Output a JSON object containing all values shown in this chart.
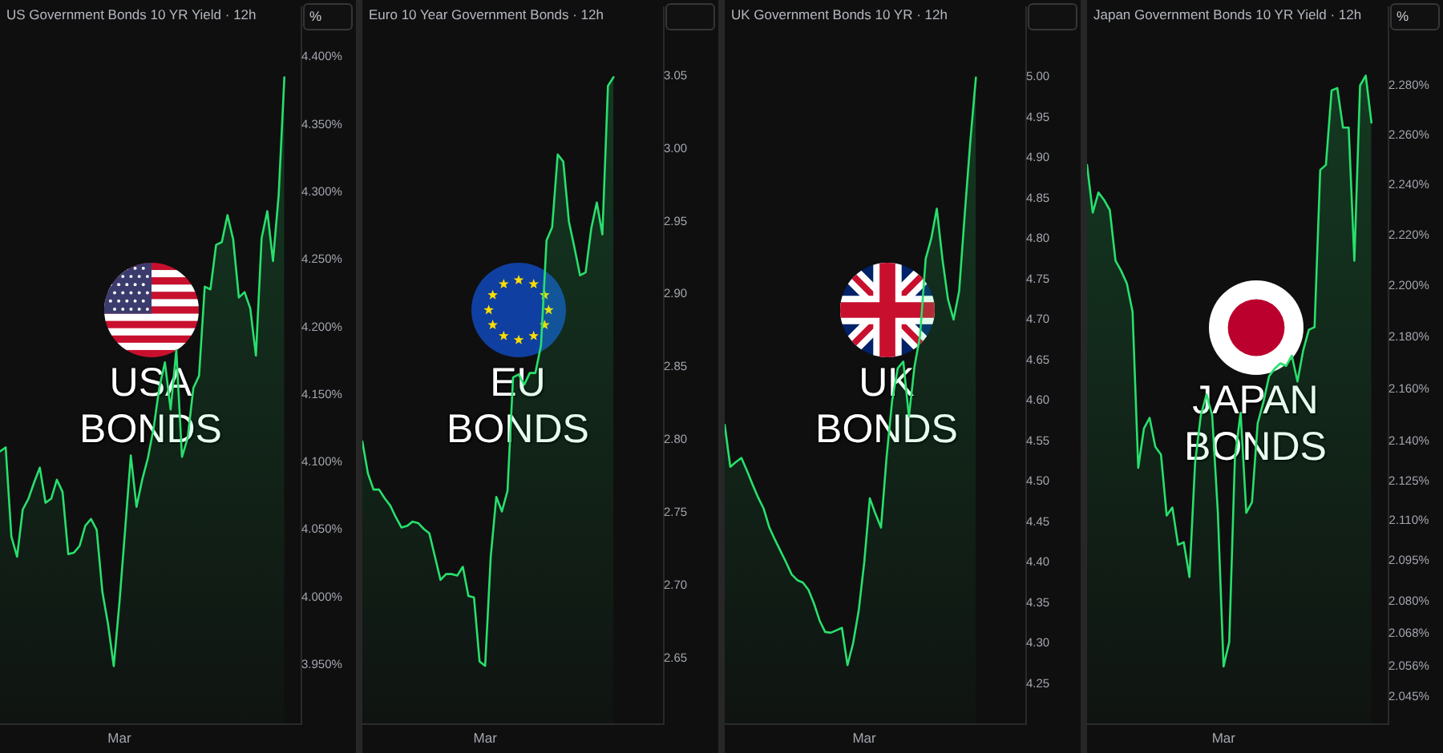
{
  "chart_data": [
    {
      "type": "area",
      "title": "US Government Bonds 10 YR Yield · 12h",
      "ylabel": "%",
      "categories": [
        null,
        null,
        null,
        null,
        null,
        null,
        null,
        null,
        null,
        null,
        null,
        null,
        null,
        null,
        null,
        null,
        null,
        null,
        null,
        null,
        null,
        "Mar",
        null,
        null,
        null,
        null,
        null,
        null,
        null,
        null,
        null,
        null,
        null,
        null,
        null,
        null,
        null,
        null,
        null,
        null,
        null,
        null,
        null,
        null,
        null,
        null,
        null,
        null,
        null,
        null,
        null,
        null,
        null,
        null
      ],
      "values": [
        4.108,
        4.111,
        4.045,
        4.03,
        4.065,
        4.073,
        4.085,
        4.096,
        4.07,
        4.073,
        4.087,
        4.078,
        4.032,
        4.033,
        4.038,
        4.053,
        4.058,
        4.05,
        4.004,
        3.98,
        3.949,
        3.996,
        4.05,
        4.105,
        4.067,
        4.087,
        4.103,
        4.125,
        4.155,
        4.174,
        4.139,
        4.183,
        4.104,
        4.118,
        4.155,
        4.164,
        4.23,
        4.228,
        4.261,
        4.263,
        4.283,
        4.265,
        4.222,
        4.226,
        4.214,
        4.179,
        4.266,
        4.286,
        4.249,
        4.298,
        4.385,
        null,
        null,
        null
      ],
      "color": "#28e06c",
      "ylim": [
        3.906,
        4.437
      ],
      "yticks": [
        {
          "value": 4.4,
          "label": "4.400%"
        },
        {
          "value": 4.35,
          "label": "4.350%"
        },
        {
          "value": 4.3,
          "label": "4.300%"
        },
        {
          "value": 4.25,
          "label": "4.250%"
        },
        {
          "value": 4.2,
          "label": "4.200%"
        },
        {
          "value": 4.15,
          "label": "4.150%"
        },
        {
          "value": 4.1,
          "label": "4.100%"
        },
        {
          "value": 4.05,
          "label": "4.050%"
        },
        {
          "value": 4.0,
          "label": "4.000%"
        },
        {
          "value": 3.95,
          "label": "3.950%"
        }
      ],
      "annotations": [
        "USA BONDS"
      ]
    },
    {
      "type": "area",
      "title": "Euro 10 Year Government Bonds · 12h",
      "categories": [
        null,
        null,
        null,
        null,
        null,
        null,
        null,
        null,
        null,
        null,
        null,
        null,
        null,
        null,
        null,
        null,
        null,
        null,
        null,
        null,
        null,
        null,
        "Mar",
        null,
        null,
        null,
        null,
        null,
        null,
        null,
        null,
        null,
        null,
        null,
        null,
        null,
        null,
        null,
        null,
        null,
        null,
        null,
        null,
        null,
        null,
        null,
        null,
        null,
        null,
        null,
        null,
        null,
        null,
        null,
        null
      ],
      "values": [
        2.799,
        2.777,
        2.766,
        2.766,
        2.76,
        2.755,
        2.747,
        2.74,
        2.741,
        2.744,
        2.743,
        2.739,
        2.736,
        2.72,
        2.704,
        2.708,
        2.708,
        2.707,
        2.713,
        2.693,
        2.692,
        2.648,
        2.645,
        2.72,
        2.761,
        2.751,
        2.765,
        2.843,
        2.845,
        2.838,
        2.846,
        2.846,
        2.865,
        2.937,
        2.946,
        2.996,
        2.991,
        2.95,
        2.932,
        2.913,
        2.915,
        2.945,
        2.963,
        2.941,
        3.043,
        3.049,
        null,
        null,
        null,
        null,
        null,
        null,
        null,
        null,
        null
      ],
      "color": "#28e06c",
      "ylim": [
        2.605,
        3.097
      ],
      "yticks": [
        3.05,
        {
          "value": 3.0,
          "label": "3.00"
        },
        2.95,
        {
          "value": 2.9,
          "label": "2.90"
        },
        2.85,
        {
          "value": 2.8,
          "label": "2.80"
        },
        2.75,
        {
          "value": 2.7,
          "label": "2.70"
        },
        2.65
      ],
      "annotations": [
        "EU BONDS"
      ]
    },
    {
      "type": "area",
      "title": "UK Government Bonds 10 YR · 12h",
      "categories": [
        null,
        null,
        null,
        null,
        null,
        null,
        null,
        null,
        null,
        null,
        null,
        null,
        null,
        null,
        null,
        null,
        null,
        null,
        null,
        null,
        null,
        null,
        null,
        null,
        null,
        "Mar",
        null,
        null,
        null,
        null,
        null,
        null,
        null,
        null,
        null,
        null,
        null,
        null,
        null,
        null,
        null,
        null,
        null,
        null,
        null,
        null,
        null,
        null,
        null,
        null,
        null,
        null,
        null,
        null,
        null
      ],
      "values": [
        4.57,
        4.518,
        4.524,
        4.529,
        4.513,
        4.496,
        4.48,
        4.466,
        4.443,
        4.428,
        4.414,
        4.4,
        4.385,
        4.378,
        4.375,
        4.366,
        4.349,
        4.328,
        4.314,
        4.313,
        4.316,
        4.319,
        4.273,
        4.3,
        4.34,
        4.4,
        4.479,
        4.46,
        4.443,
        4.53,
        4.6,
        4.64,
        4.648,
        4.58,
        4.642,
        4.68,
        4.775,
        4.8,
        4.837,
        4.775,
        4.725,
        4.7,
        4.735,
        4.83,
        4.92,
        4.999,
        null,
        null,
        null,
        null,
        null,
        null,
        null,
        null,
        null
      ],
      "color": "#28e06c",
      "ylim": [
        4.2,
        5.086
      ],
      "yticks": [
        {
          "value": 5.0,
          "label": "5.00"
        },
        4.95,
        {
          "value": 4.9,
          "label": "4.90"
        },
        4.85,
        {
          "value": 4.8,
          "label": "4.80"
        },
        4.75,
        {
          "value": 4.7,
          "label": "4.70"
        },
        4.65,
        {
          "value": 4.6,
          "label": "4.60"
        },
        4.55,
        {
          "value": 4.5,
          "label": "4.50"
        },
        4.45,
        {
          "value": 4.4,
          "label": "4.40"
        },
        4.35,
        {
          "value": 4.3,
          "label": "4.30"
        },
        4.25
      ],
      "annotations": [
        "UK BONDS"
      ]
    },
    {
      "type": "area",
      "title": "Japan Government Bonds 10 YR Yield · 12h",
      "ylabel": "%",
      "log": true,
      "categories": [
        null,
        null,
        null,
        null,
        null,
        null,
        null,
        null,
        null,
        null,
        null,
        null,
        null,
        null,
        null,
        null,
        null,
        null,
        null,
        null,
        null,
        null,
        null,
        null,
        "Mar",
        null,
        null,
        null,
        null,
        null,
        null,
        null,
        null,
        null,
        null,
        null,
        null,
        null,
        null,
        null,
        null,
        null,
        null,
        null,
        null,
        null,
        null,
        null,
        null,
        null,
        null,
        null,
        null,
        null
      ],
      "values": [
        2.248,
        2.229,
        2.237,
        2.234,
        2.23,
        2.21,
        2.206,
        2.201,
        2.19,
        2.13,
        2.145,
        2.149,
        2.138,
        2.135,
        2.112,
        2.115,
        2.101,
        2.102,
        2.089,
        2.132,
        2.15,
        2.158,
        2.15,
        2.113,
        2.056,
        2.065,
        2.134,
        2.151,
        2.113,
        2.117,
        2.147,
        2.155,
        2.165,
        2.168,
        2.17,
        2.169,
        2.173,
        2.163,
        2.175,
        2.183,
        2.184,
        2.246,
        2.248,
        2.278,
        2.279,
        2.263,
        2.263,
        2.21,
        2.28,
        2.284,
        2.265,
        null,
        null,
        null
      ],
      "color": "#28e06c",
      "ylim": [
        2.035,
        2.312
      ],
      "yticks": [
        {
          "value": 2.28,
          "label": "2.280%"
        },
        {
          "value": 2.26,
          "label": "2.260%"
        },
        {
          "value": 2.24,
          "label": "2.240%"
        },
        {
          "value": 2.22,
          "label": "2.220%"
        },
        {
          "value": 2.2,
          "label": "2.200%"
        },
        {
          "value": 2.18,
          "label": "2.180%"
        },
        {
          "value": 2.16,
          "label": "2.160%"
        },
        {
          "value": 2.14,
          "label": "2.140%"
        },
        {
          "value": 2.125,
          "label": "2.125%"
        },
        {
          "value": 2.11,
          "label": "2.110%"
        },
        {
          "value": 2.095,
          "label": "2.095%"
        },
        {
          "value": 2.08,
          "label": "2.080%"
        },
        {
          "value": 2.068,
          "label": "2.068%"
        },
        {
          "value": 2.056,
          "label": "2.056%"
        },
        {
          "value": 2.045,
          "label": "2.045%"
        }
      ],
      "annotations": [
        "JAPAN BONDS"
      ]
    }
  ]
}
